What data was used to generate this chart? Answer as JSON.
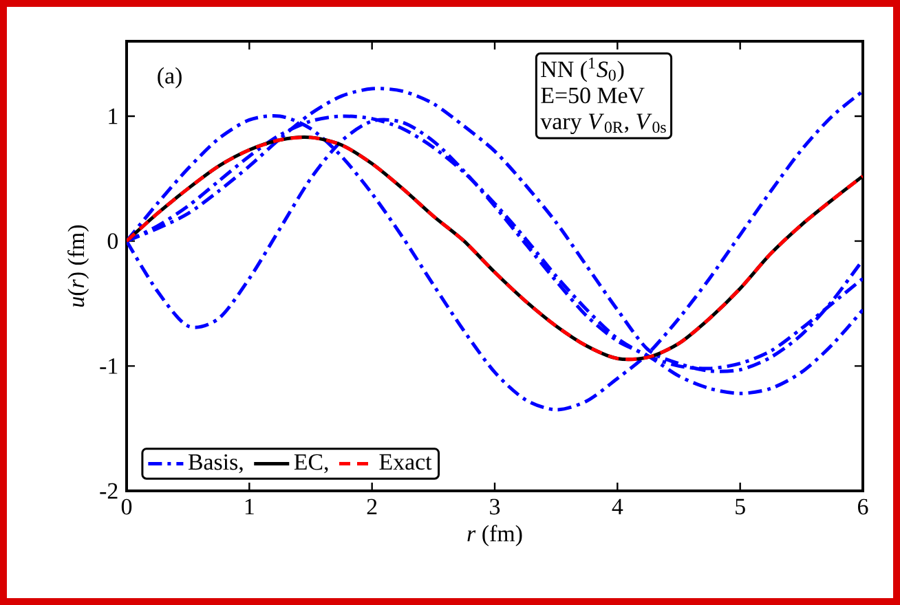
{
  "chart_data": {
    "type": "line",
    "xlabel": "*r* (fm)",
    "ylabel": "*u*(*r*) (fm)",
    "x": [
      0,
      0.25,
      0.5,
      0.75,
      1,
      1.25,
      1.5,
      1.75,
      2,
      2.25,
      2.5,
      2.75,
      3,
      3.25,
      3.5,
      3.75,
      4,
      4.25,
      4.5,
      4.75,
      5,
      5.25,
      5.5,
      5.75,
      6
    ],
    "series": [
      {
        "name": "Basis,",
        "color": "#0000ff",
        "line_style": "dashdot",
        "values": [
          0,
          0.3,
          0.58,
          0.82,
          0.97,
          1.0,
          0.9,
          0.68,
          0.38,
          0.03,
          -0.35,
          -0.72,
          -1.05,
          -1.27,
          -1.35,
          -1.28,
          -1.1,
          -0.9,
          -0.62,
          -0.3,
          0.05,
          0.4,
          0.73,
          1.0,
          1.2
        ]
      },
      {
        "color": "#0000ff",
        "line_style": "dashdot",
        "values": [
          0,
          -0.4,
          -0.68,
          -0.62,
          -0.3,
          0.1,
          0.5,
          0.8,
          0.96,
          0.95,
          0.8,
          0.56,
          0.28,
          -0.02,
          -0.32,
          -0.6,
          -0.8,
          -0.92,
          -1.08,
          -1.18,
          -1.22,
          -1.18,
          -1.05,
          -0.83,
          -0.55
        ]
      },
      {
        "color": "#0000ff",
        "line_style": "dashdot",
        "values": [
          0,
          0.1,
          0.22,
          0.4,
          0.6,
          0.82,
          1.02,
          1.16,
          1.22,
          1.2,
          1.1,
          0.92,
          0.72,
          0.45,
          0.15,
          -0.2,
          -0.55,
          -0.87,
          -0.98,
          -1.04,
          -1.03,
          -0.93,
          -0.75,
          -0.48,
          -0.15
        ]
      },
      {
        "color": "#0000ff",
        "line_style": "dashdot",
        "values": [
          0,
          0.12,
          0.28,
          0.48,
          0.68,
          0.85,
          0.96,
          1.0,
          0.98,
          0.9,
          0.75,
          0.55,
          0.3,
          0.02,
          -0.28,
          -0.55,
          -0.78,
          -0.92,
          -1.0,
          -1.02,
          -0.98,
          -0.88,
          -0.7,
          -0.5,
          -0.3
        ]
      },
      {
        "name": "EC,",
        "color": "#000000",
        "line_style": "solid",
        "values": [
          0,
          0.22,
          0.42,
          0.6,
          0.73,
          0.81,
          0.83,
          0.77,
          0.62,
          0.42,
          0.2,
          0.0,
          -0.25,
          -0.48,
          -0.68,
          -0.84,
          -0.94,
          -0.93,
          -0.82,
          -0.62,
          -0.38,
          -0.1,
          0.13,
          0.33,
          0.52
        ]
      },
      {
        "name": "Exact",
        "color": "#ff0000",
        "line_style": "dashed",
        "values": [
          0,
          0.22,
          0.42,
          0.6,
          0.73,
          0.81,
          0.83,
          0.77,
          0.62,
          0.42,
          0.2,
          0.0,
          -0.25,
          -0.48,
          -0.68,
          -0.84,
          -0.94,
          -0.93,
          -0.82,
          -0.62,
          -0.38,
          -0.1,
          0.13,
          0.33,
          0.52
        ]
      }
    ],
    "xlim": [
      0,
      6
    ],
    "ylim": [
      -2,
      1.6
    ],
    "xticks": [
      0,
      1,
      2,
      3,
      4,
      5,
      6
    ],
    "yticks": [
      -2,
      -1,
      0,
      1
    ],
    "grid": false,
    "legend": "bottom left",
    "annotations": [
      "(a)",
      "NN ($^{1}$*S*$_{0}$)",
      "E=50 MeV",
      "vary *V*$_{0R}$, *V*$_{0s}$"
    ]
  }
}
